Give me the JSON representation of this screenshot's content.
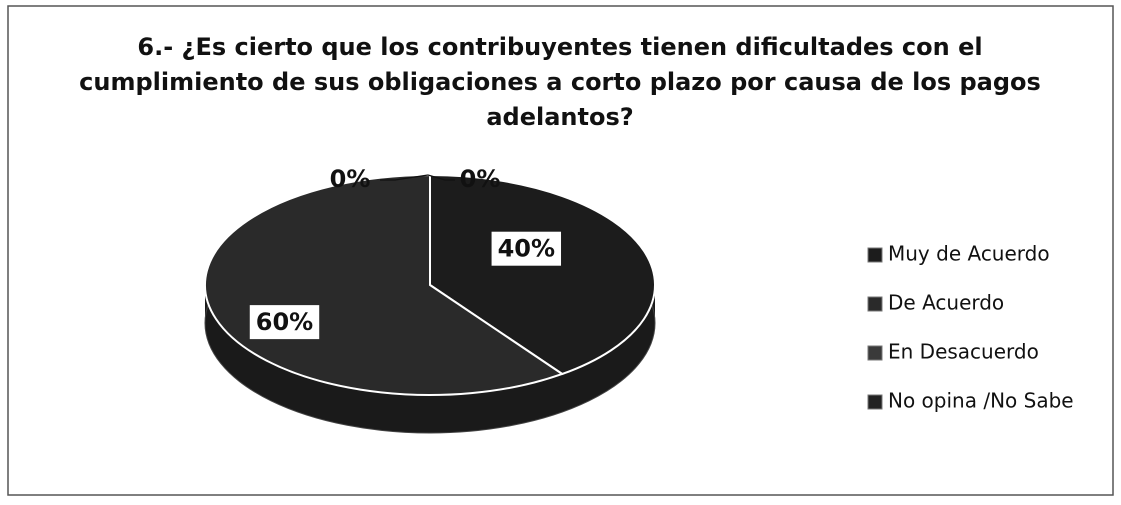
{
  "chart_data": {
    "type": "pie",
    "title": [
      "6.- ¿Es cierto que los contribuyentes tienen dificultades con el",
      "cumplimiento de sus obligaciones a corto plazo por causa de los  pagos",
      "adelantos?"
    ],
    "categories": [
      "Muy de Acuerdo",
      "De Acuerdo",
      "En Desacuerdo",
      "No opina /No Sabe"
    ],
    "values": [
      40,
      60,
      0,
      0
    ],
    "value_labels": [
      "40%",
      "60%",
      "0%",
      "0%"
    ],
    "colors": [
      "#1c1c1c",
      "#2a2a2a",
      "#3a3a3a",
      "#222222"
    ],
    "legend": "right"
  }
}
